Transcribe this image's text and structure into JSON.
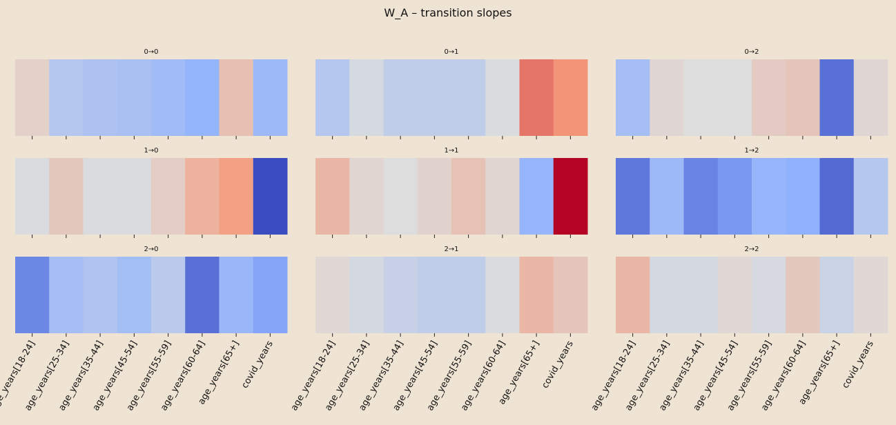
{
  "chart_data": {
    "type": "heatmap",
    "title": "W_A – transition slopes",
    "colormap": "coolwarm",
    "categories": [
      "age_years[18-24]",
      "age_years[25-34]",
      "age_years[35-44]",
      "age_years[45-54]",
      "age_years[55-59]",
      "age_years[60-64]",
      "age_years[65+]",
      "covid_years"
    ],
    "value_range": [
      -1,
      1
    ],
    "panels": [
      {
        "title": "0→0",
        "values": [
          0.1,
          -0.25,
          -0.3,
          -0.32,
          -0.38,
          -0.45,
          0.22,
          -0.4
        ]
      },
      {
        "title": "0→1",
        "values": [
          -0.25,
          -0.05,
          -0.18,
          -0.18,
          -0.18,
          -0.02,
          0.62,
          0.52
        ]
      },
      {
        "title": "0→2",
        "values": [
          -0.35,
          0.05,
          0.0,
          0.0,
          0.14,
          0.18,
          -0.82,
          0.05
        ]
      },
      {
        "title": "1→0",
        "values": [
          -0.02,
          0.16,
          -0.02,
          -0.02,
          0.12,
          0.32,
          0.45,
          -1.0
        ]
      },
      {
        "title": "1→1",
        "values": [
          0.28,
          0.06,
          0.0,
          0.08,
          0.2,
          0.06,
          -0.44,
          1.0
        ]
      },
      {
        "title": "1→2",
        "values": [
          -0.78,
          -0.4,
          -0.72,
          -0.62,
          -0.44,
          -0.48,
          -0.85,
          -0.25
        ]
      },
      {
        "title": "2→0",
        "values": [
          -0.7,
          -0.35,
          -0.28,
          -0.36,
          -0.22,
          -0.82,
          -0.42,
          -0.55
        ]
      },
      {
        "title": "2→1",
        "values": [
          0.04,
          -0.06,
          -0.14,
          -0.18,
          -0.18,
          -0.02,
          0.28,
          0.18
        ]
      },
      {
        "title": "2→2",
        "values": [
          0.28,
          -0.06,
          -0.06,
          0.04,
          -0.04,
          0.16,
          -0.12,
          0.04
        ]
      }
    ]
  }
}
